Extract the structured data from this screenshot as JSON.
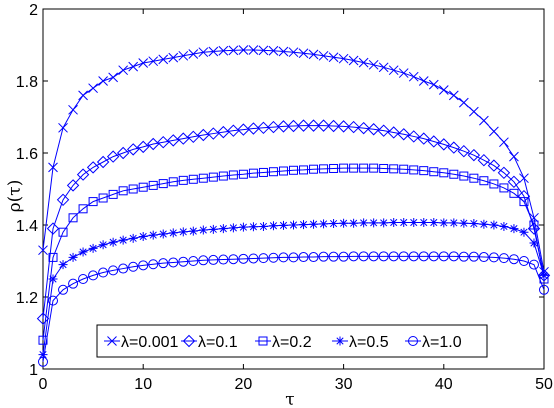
{
  "chart_data": {
    "type": "line",
    "xlabel": "τ",
    "ylabel": "ρ(τ)",
    "xlim": [
      0,
      50
    ],
    "ylim": [
      1,
      2
    ],
    "xticks": [
      "0",
      "10",
      "20",
      "30",
      "40",
      "50"
    ],
    "yticks": [
      "1",
      "1.2",
      "1.4",
      "1.6",
      "1.8",
      "2"
    ],
    "grid": false,
    "legend_position": "bottom-center",
    "line_color": "#0000ff",
    "x": [
      0,
      1,
      2,
      3,
      4,
      5,
      6,
      7,
      8,
      9,
      10,
      11,
      12,
      13,
      14,
      15,
      16,
      17,
      18,
      19,
      20,
      21,
      22,
      23,
      24,
      25,
      26,
      27,
      28,
      29,
      30,
      31,
      32,
      33,
      34,
      35,
      36,
      37,
      38,
      39,
      40,
      41,
      42,
      43,
      44,
      45,
      46,
      47,
      48,
      49,
      50
    ],
    "series": [
      {
        "name": "λ=0.001",
        "marker": "x",
        "values": [
          1.33,
          1.56,
          1.67,
          1.72,
          1.76,
          1.78,
          1.8,
          1.81,
          1.83,
          1.84,
          1.85,
          1.855,
          1.86,
          1.865,
          1.87,
          1.875,
          1.88,
          1.882,
          1.884,
          1.885,
          1.886,
          1.886,
          1.885,
          1.884,
          1.882,
          1.88,
          1.877,
          1.874,
          1.87,
          1.866,
          1.862,
          1.857,
          1.851,
          1.845,
          1.838,
          1.83,
          1.822,
          1.812,
          1.8,
          1.79,
          1.775,
          1.76,
          1.74,
          1.715,
          1.69,
          1.66,
          1.63,
          1.59,
          1.53,
          1.42,
          1.27
        ]
      },
      {
        "name": "λ=0.1",
        "marker": "diamond",
        "values": [
          1.14,
          1.39,
          1.47,
          1.51,
          1.54,
          1.56,
          1.575,
          1.59,
          1.6,
          1.61,
          1.617,
          1.625,
          1.63,
          1.635,
          1.64,
          1.645,
          1.65,
          1.654,
          1.658,
          1.662,
          1.665,
          1.668,
          1.67,
          1.672,
          1.674,
          1.675,
          1.676,
          1.676,
          1.676,
          1.675,
          1.674,
          1.672,
          1.669,
          1.666,
          1.662,
          1.657,
          1.652,
          1.646,
          1.64,
          1.632,
          1.624,
          1.615,
          1.605,
          1.594,
          1.58,
          1.565,
          1.545,
          1.52,
          1.48,
          1.39,
          1.26
        ]
      },
      {
        "name": "λ=0.2",
        "marker": "square",
        "values": [
          1.08,
          1.31,
          1.38,
          1.42,
          1.445,
          1.465,
          1.475,
          1.485,
          1.495,
          1.5,
          1.505,
          1.51,
          1.515,
          1.52,
          1.524,
          1.527,
          1.53,
          1.533,
          1.536,
          1.539,
          1.541,
          1.544,
          1.546,
          1.548,
          1.55,
          1.552,
          1.553,
          1.555,
          1.556,
          1.557,
          1.558,
          1.558,
          1.558,
          1.558,
          1.557,
          1.556,
          1.555,
          1.553,
          1.551,
          1.548,
          1.545,
          1.541,
          1.536,
          1.53,
          1.523,
          1.514,
          1.503,
          1.488,
          1.465,
          1.4,
          1.25
        ]
      },
      {
        "name": "λ=0.5",
        "marker": "star",
        "values": [
          1.04,
          1.25,
          1.29,
          1.31,
          1.325,
          1.335,
          1.345,
          1.352,
          1.358,
          1.363,
          1.368,
          1.372,
          1.375,
          1.378,
          1.381,
          1.383,
          1.386,
          1.388,
          1.39,
          1.392,
          1.394,
          1.395,
          1.396,
          1.398,
          1.399,
          1.4,
          1.401,
          1.402,
          1.403,
          1.404,
          1.405,
          1.405,
          1.406,
          1.406,
          1.406,
          1.407,
          1.407,
          1.407,
          1.407,
          1.407,
          1.406,
          1.406,
          1.405,
          1.404,
          1.402,
          1.4,
          1.396,
          1.39,
          1.38,
          1.35,
          1.26
        ]
      },
      {
        "name": "λ=1.0",
        "marker": "circle",
        "values": [
          1.02,
          1.19,
          1.22,
          1.237,
          1.25,
          1.26,
          1.268,
          1.274,
          1.279,
          1.284,
          1.288,
          1.291,
          1.294,
          1.296,
          1.298,
          1.3,
          1.302,
          1.303,
          1.304,
          1.305,
          1.306,
          1.307,
          1.308,
          1.309,
          1.31,
          1.31,
          1.311,
          1.311,
          1.312,
          1.312,
          1.312,
          1.313,
          1.313,
          1.313,
          1.313,
          1.313,
          1.313,
          1.313,
          1.313,
          1.313,
          1.313,
          1.313,
          1.312,
          1.312,
          1.311,
          1.31,
          1.308,
          1.305,
          1.3,
          1.29,
          1.22
        ]
      }
    ]
  }
}
